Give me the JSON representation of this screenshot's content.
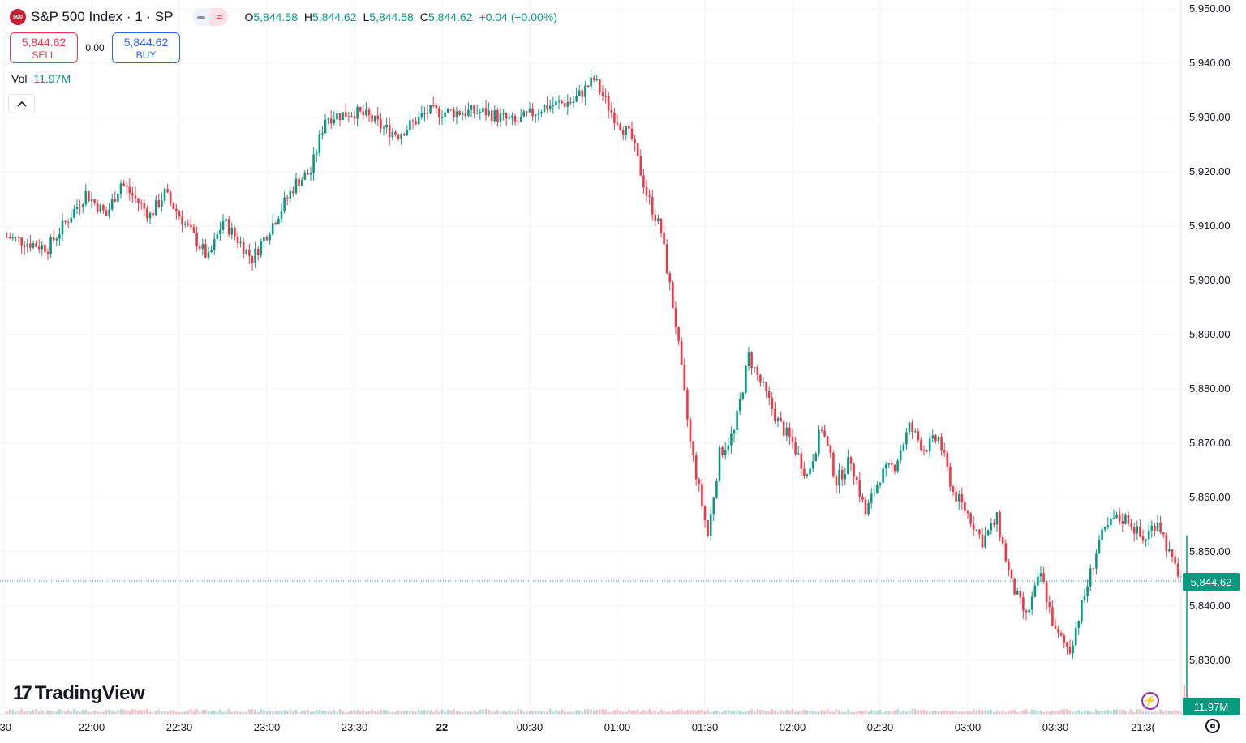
{
  "header": {
    "logo_text": "500",
    "symbol": "S&P 500 Index · 1 · SP",
    "open_label": "O",
    "open": "5,844.58",
    "high_label": "H",
    "high": "5,844.62",
    "low_label": "L",
    "low": "5,844.58",
    "close_label": "C",
    "close": "5,844.62",
    "change": "+0.04 (+0.00%)"
  },
  "trade": {
    "sell_price": "5,844.62",
    "sell_label": "SELL",
    "spread": "0.00",
    "buy_price": "5,844.62",
    "buy_label": "BUY"
  },
  "volume": {
    "label": "Vol",
    "value": "11.97M"
  },
  "brand": {
    "mark": "17",
    "name": "TradingView"
  },
  "price_tag": "5,844.62",
  "volume_tag": "11.97M",
  "colors": {
    "up": "#089981",
    "down": "#f23645",
    "grid": "#f0f3fa",
    "text": "#131722"
  },
  "chart_data": {
    "type": "candlestick",
    "y_ticks": [
      "5,950.00",
      "5,940.00",
      "5,930.00",
      "5,920.00",
      "5,910.00",
      "5,900.00",
      "5,890.00",
      "5,880.00",
      "5,870.00",
      "5,860.00",
      "5,850.00",
      "5,840.00",
      "5,830.00"
    ],
    "x_ticks": [
      ":30",
      "22:00",
      "22:30",
      "23:00",
      "23:30",
      "22",
      "00:30",
      "01:00",
      "01:30",
      "02:00",
      "02:30",
      "03:00",
      "03:30",
      "21:3("
    ],
    "ylim": [
      5822,
      5952
    ],
    "last_price": 5844.62,
    "path_close": [
      [
        "21:31",
        5908
      ],
      [
        "21:45",
        5906
      ],
      [
        "21:58",
        5916
      ],
      [
        "22:05",
        5912
      ],
      [
        "22:10",
        5918
      ],
      [
        "22:20",
        5912
      ],
      [
        "22:25",
        5916
      ],
      [
        "22:35",
        5908
      ],
      [
        "22:40",
        5904
      ],
      [
        "22:45",
        5911
      ],
      [
        "22:55",
        5904
      ],
      [
        "23:10",
        5918
      ],
      [
        "23:15",
        5920
      ],
      [
        "23:20",
        5930
      ],
      [
        "23:30",
        5931
      ],
      [
        "23:35",
        5930
      ],
      [
        "23:40",
        5928
      ],
      [
        "23:45",
        5927
      ],
      [
        "23:55",
        5931
      ],
      [
        "00:05",
        5931
      ],
      [
        "00:15",
        5931
      ],
      [
        "00:25",
        5929
      ],
      [
        "00:35",
        5932
      ],
      [
        "00:45",
        5933
      ],
      [
        "00:52",
        5937
      ],
      [
        "00:58",
        5931
      ],
      [
        "01:05",
        5926
      ],
      [
        "01:10",
        5916
      ],
      [
        "01:15",
        5909
      ],
      [
        "01:20",
        5892
      ],
      [
        "01:25",
        5870
      ],
      [
        "01:31",
        5853
      ],
      [
        "01:35",
        5868
      ],
      [
        "01:40",
        5872
      ],
      [
        "01:45",
        5886
      ],
      [
        "01:50",
        5880
      ],
      [
        "01:55",
        5874
      ],
      [
        "02:00",
        5870
      ],
      [
        "02:05",
        5864
      ],
      [
        "02:10",
        5873
      ],
      [
        "02:15",
        5863
      ],
      [
        "02:20",
        5867
      ],
      [
        "02:25",
        5857
      ],
      [
        "02:30",
        5864
      ],
      [
        "02:35",
        5866
      ],
      [
        "02:40",
        5873
      ],
      [
        "02:45",
        5869
      ],
      [
        "02:50",
        5871
      ],
      [
        "02:55",
        5861
      ],
      [
        "03:00",
        5857
      ],
      [
        "03:05",
        5852
      ],
      [
        "03:10",
        5856
      ],
      [
        "03:15",
        5844
      ],
      [
        "03:20",
        5838
      ],
      [
        "03:25",
        5846
      ],
      [
        "03:30",
        5835
      ],
      [
        "03:35",
        5832
      ],
      [
        "03:40",
        5842
      ],
      [
        "03:45",
        5852
      ],
      [
        "03:50",
        5856
      ],
      [
        "03:55",
        5856
      ],
      [
        "04:00",
        5852
      ],
      [
        "04:05",
        5856
      ],
      [
        "04:10",
        5848
      ],
      [
        "04:14",
        5844.6
      ]
    ]
  }
}
